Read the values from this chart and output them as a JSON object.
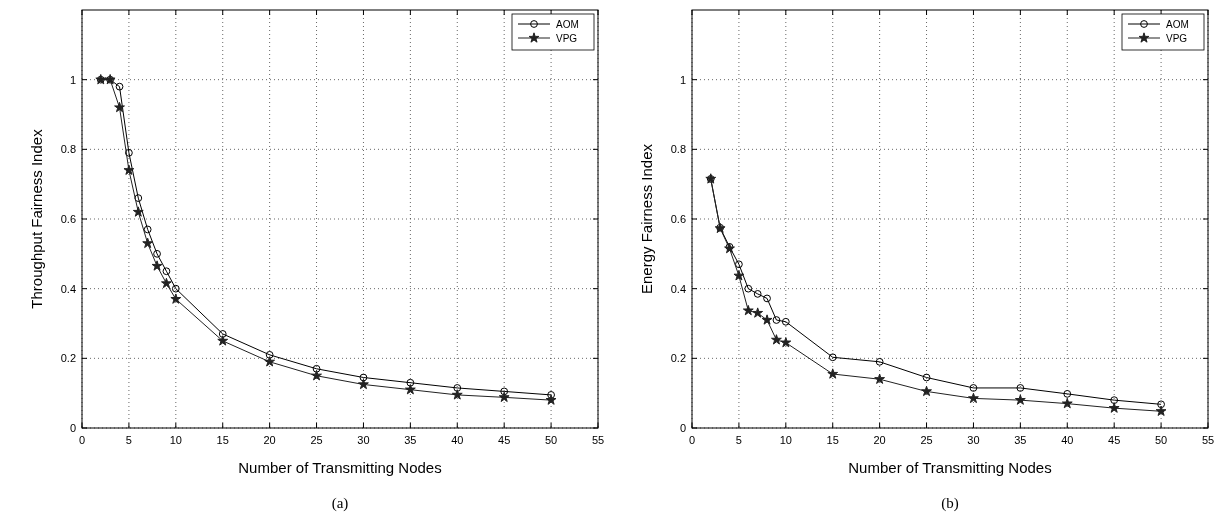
{
  "chart_data": [
    {
      "type": "line",
      "xlabel": "Number of Transmitting Nodes",
      "ylabel": "Throughput Fairness Index",
      "annotations": [
        "(a)"
      ],
      "x": [
        2,
        3,
        4,
        5,
        6,
        7,
        8,
        9,
        10,
        15,
        20,
        25,
        30,
        35,
        40,
        45,
        50
      ],
      "xlim": [
        0,
        55
      ],
      "xticks": [
        0,
        5,
        10,
        15,
        20,
        25,
        30,
        35,
        40,
        45,
        50,
        55
      ],
      "ylim": [
        0,
        1.2
      ],
      "yticks": [
        0,
        0.2,
        0.4,
        0.6,
        0.8,
        1
      ],
      "grid": true,
      "legend": "top right",
      "line_style": "solid",
      "series": [
        {
          "name": "AOM",
          "color": "#000000",
          "marker": "circle",
          "values": [
            1,
            1,
            0.98,
            0.79,
            0.66,
            0.57,
            0.5,
            0.45,
            0.4,
            0.27,
            0.21,
            0.17,
            0.145,
            0.13,
            0.115,
            0.105,
            0.095
          ]
        },
        {
          "name": "VPG",
          "color": "#222222",
          "marker": "star",
          "values": [
            1,
            1,
            0.92,
            0.74,
            0.62,
            0.53,
            0.465,
            0.415,
            0.37,
            0.25,
            0.19,
            0.15,
            0.125,
            0.11,
            0.095,
            0.088,
            0.08
          ]
        }
      ]
    },
    {
      "type": "line",
      "xlabel": "Number of Transmitting Nodes",
      "ylabel": "Energy Fairness Index",
      "annotations": [
        "(b)"
      ],
      "x": [
        2,
        3,
        4,
        5,
        6,
        7,
        8,
        9,
        10,
        15,
        20,
        25,
        30,
        35,
        40,
        45,
        50
      ],
      "xlim": [
        0,
        55
      ],
      "xticks": [
        0,
        5,
        10,
        15,
        20,
        25,
        30,
        35,
        40,
        45,
        50,
        55
      ],
      "ylim": [
        0,
        1.2
      ],
      "yticks": [
        0,
        0.2,
        0.4,
        0.6,
        0.8,
        1
      ],
      "grid": true,
      "legend": "top right",
      "line_style": "solid",
      "series": [
        {
          "name": "AOM",
          "color": "#000000",
          "marker": "circle",
          "values": [
            0.715,
            0.575,
            0.52,
            0.47,
            0.4,
            0.385,
            0.372,
            0.31,
            0.305,
            0.203,
            0.19,
            0.145,
            0.115,
            0.115,
            0.098,
            0.08,
            0.068
          ]
        },
        {
          "name": "VPG",
          "color": "#222222",
          "marker": "star",
          "values": [
            0.715,
            0.573,
            0.515,
            0.437,
            0.337,
            0.33,
            0.31,
            0.253,
            0.245,
            0.155,
            0.14,
            0.105,
            0.085,
            0.08,
            0.07,
            0.057,
            0.048
          ]
        }
      ]
    }
  ]
}
